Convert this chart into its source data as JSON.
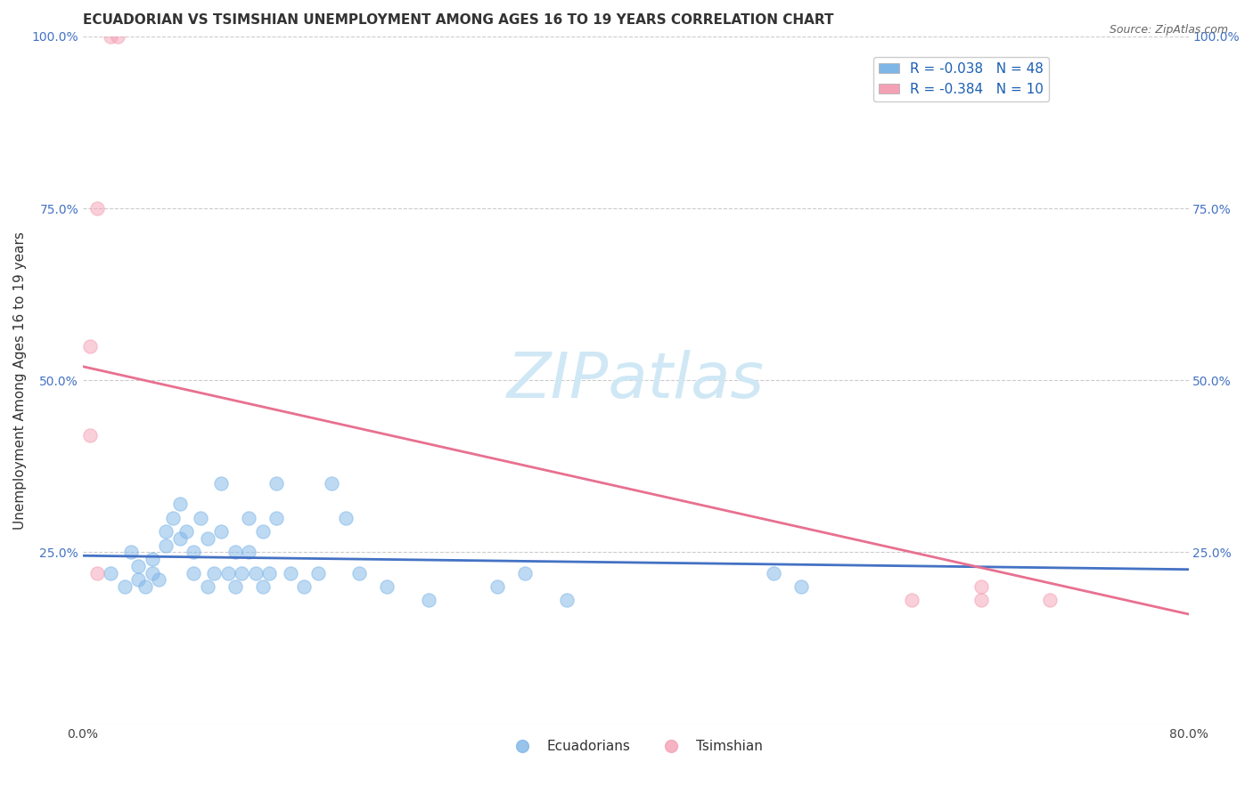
{
  "title": "ECUADORIAN VS TSIMSHIAN UNEMPLOYMENT AMONG AGES 16 TO 19 YEARS CORRELATION CHART",
  "source_text": "Source: ZipAtlas.com",
  "xlabel": "",
  "ylabel": "Unemployment Among Ages 16 to 19 years",
  "xlim": [
    0.0,
    0.8
  ],
  "ylim": [
    0.0,
    1.0
  ],
  "xticks": [
    0.0,
    0.2,
    0.4,
    0.6,
    0.8
  ],
  "xticklabels": [
    "0.0%",
    "",
    "",
    "",
    "80.0%"
  ],
  "yticks": [
    0.0,
    0.25,
    0.5,
    0.75,
    1.0
  ],
  "yticklabels": [
    "",
    "25.0%",
    "50.0%",
    "75.0%",
    "100.0%"
  ],
  "blue_color": "#7EB6E8",
  "pink_color": "#F4A0B5",
  "blue_line_color": "#4472C4",
  "pink_line_color": "#E87090",
  "bg_color": "#FFFFFF",
  "watermark_color": "#D0E8F5",
  "legend_r1": "R = -0.038",
  "legend_n1": "N = 48",
  "legend_r2": "R = -0.384",
  "legend_n2": "N = 10",
  "blue_scatter_x": [
    0.02,
    0.03,
    0.035,
    0.04,
    0.04,
    0.045,
    0.05,
    0.05,
    0.055,
    0.06,
    0.06,
    0.065,
    0.07,
    0.07,
    0.075,
    0.08,
    0.08,
    0.085,
    0.09,
    0.09,
    0.095,
    0.1,
    0.1,
    0.105,
    0.11,
    0.11,
    0.115,
    0.12,
    0.12,
    0.125,
    0.13,
    0.13,
    0.135,
    0.14,
    0.14,
    0.15,
    0.16,
    0.17,
    0.18,
    0.19,
    0.2,
    0.22,
    0.25,
    0.3,
    0.32,
    0.35,
    0.5,
    0.52
  ],
  "blue_scatter_y": [
    0.22,
    0.2,
    0.25,
    0.21,
    0.23,
    0.2,
    0.22,
    0.24,
    0.21,
    0.28,
    0.26,
    0.3,
    0.27,
    0.32,
    0.28,
    0.25,
    0.22,
    0.3,
    0.27,
    0.2,
    0.22,
    0.35,
    0.28,
    0.22,
    0.25,
    0.2,
    0.22,
    0.3,
    0.25,
    0.22,
    0.28,
    0.2,
    0.22,
    0.3,
    0.35,
    0.22,
    0.2,
    0.22,
    0.35,
    0.3,
    0.22,
    0.2,
    0.18,
    0.2,
    0.22,
    0.18,
    0.22,
    0.2
  ],
  "pink_scatter_x": [
    0.02,
    0.025,
    0.01,
    0.005,
    0.005,
    0.01,
    0.6,
    0.65,
    0.65,
    0.7
  ],
  "pink_scatter_y": [
    1.0,
    1.0,
    0.75,
    0.55,
    0.42,
    0.22,
    0.18,
    0.18,
    0.2,
    0.18
  ],
  "blue_trend_x": [
    0.0,
    0.8
  ],
  "blue_trend_y": [
    0.245,
    0.225
  ],
  "pink_trend_x": [
    0.0,
    0.8
  ],
  "pink_trend_y": [
    0.52,
    0.16
  ],
  "grid_color": "#CCCCCC",
  "title_fontsize": 11,
  "axis_label_fontsize": 11,
  "tick_fontsize": 10,
  "legend_fontsize": 11,
  "scatter_size": 120,
  "scatter_alpha": 0.5,
  "scatter_linewidth": 1.0
}
